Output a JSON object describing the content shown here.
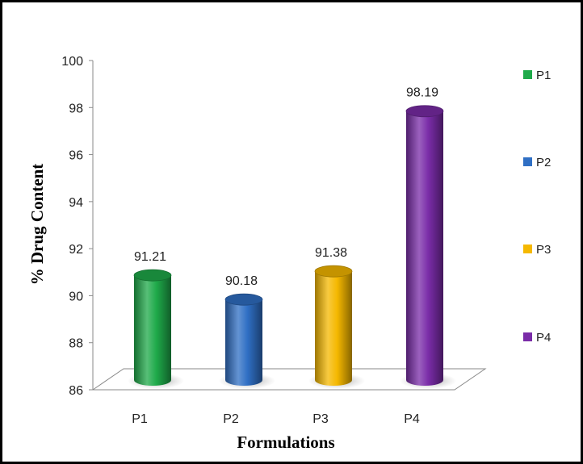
{
  "chart_data": {
    "type": "bar",
    "title": "",
    "xlabel": "Formulations",
    "ylabel": "% Drug Content",
    "categories": [
      "P1",
      "P2",
      "P3",
      "P4"
    ],
    "values": [
      91.21,
      90.18,
      91.38,
      98.19
    ],
    "data_labels": [
      "91.21",
      "90.18",
      "91.38",
      "98.19"
    ],
    "ylim": [
      86,
      100
    ],
    "yticks": [
      "86",
      "88",
      "90",
      "92",
      "94",
      "96",
      "98",
      "100"
    ],
    "colors": [
      "#1faa4a",
      "#2f6fc4",
      "#f5b800",
      "#7a2ca8"
    ],
    "legend": {
      "placement": "right",
      "entries": [
        "P1",
        "P2",
        "P3",
        "P4"
      ]
    },
    "grid": false
  }
}
